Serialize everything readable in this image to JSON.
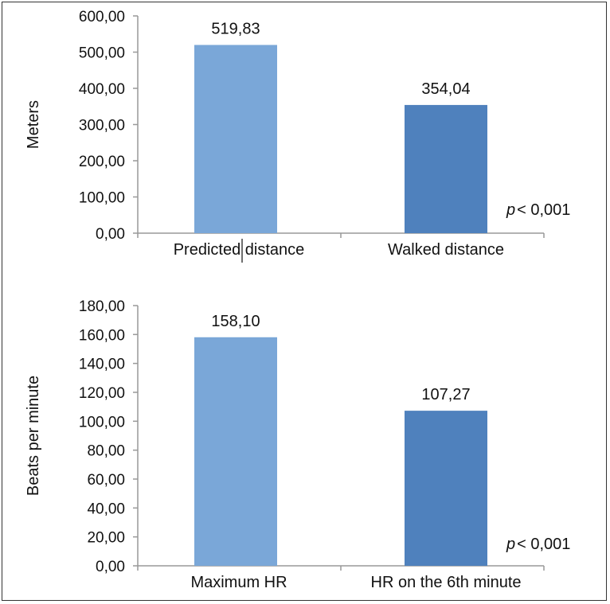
{
  "chart_data": [
    {
      "type": "bar",
      "categories": [
        "Predicted distance",
        "Walked distance"
      ],
      "values": [
        519.83,
        354.04
      ],
      "value_labels": [
        "519,83",
        "354,04"
      ],
      "ylabel": "Meters",
      "ylim": [
        0,
        600
      ],
      "y_ticks": [
        "0,00",
        "100,00",
        "200,00",
        "300,00",
        "400,00",
        "500,00",
        "600,00"
      ],
      "bar_colors": [
        "#7aa7d8",
        "#4f81bd"
      ],
      "annotation": {
        "p": "p",
        "text": "< 0,001"
      },
      "grid": false
    },
    {
      "type": "bar",
      "categories": [
        "Maximum HR",
        "HR on the 6th minute"
      ],
      "values": [
        158.1,
        107.27
      ],
      "value_labels": [
        "158,10",
        "107,27"
      ],
      "ylabel": "Beats per minute",
      "ylim": [
        0,
        180
      ],
      "y_ticks": [
        "0,00",
        "20,00",
        "40,00",
        "60,00",
        "80,00",
        "100,00",
        "120,00",
        "140,00",
        "160,00",
        "180,00"
      ],
      "bar_colors": [
        "#7aa7d8",
        "#4f81bd"
      ],
      "annotation": {
        "p": "p",
        "text": "< 0,001"
      },
      "grid": false
    }
  ]
}
